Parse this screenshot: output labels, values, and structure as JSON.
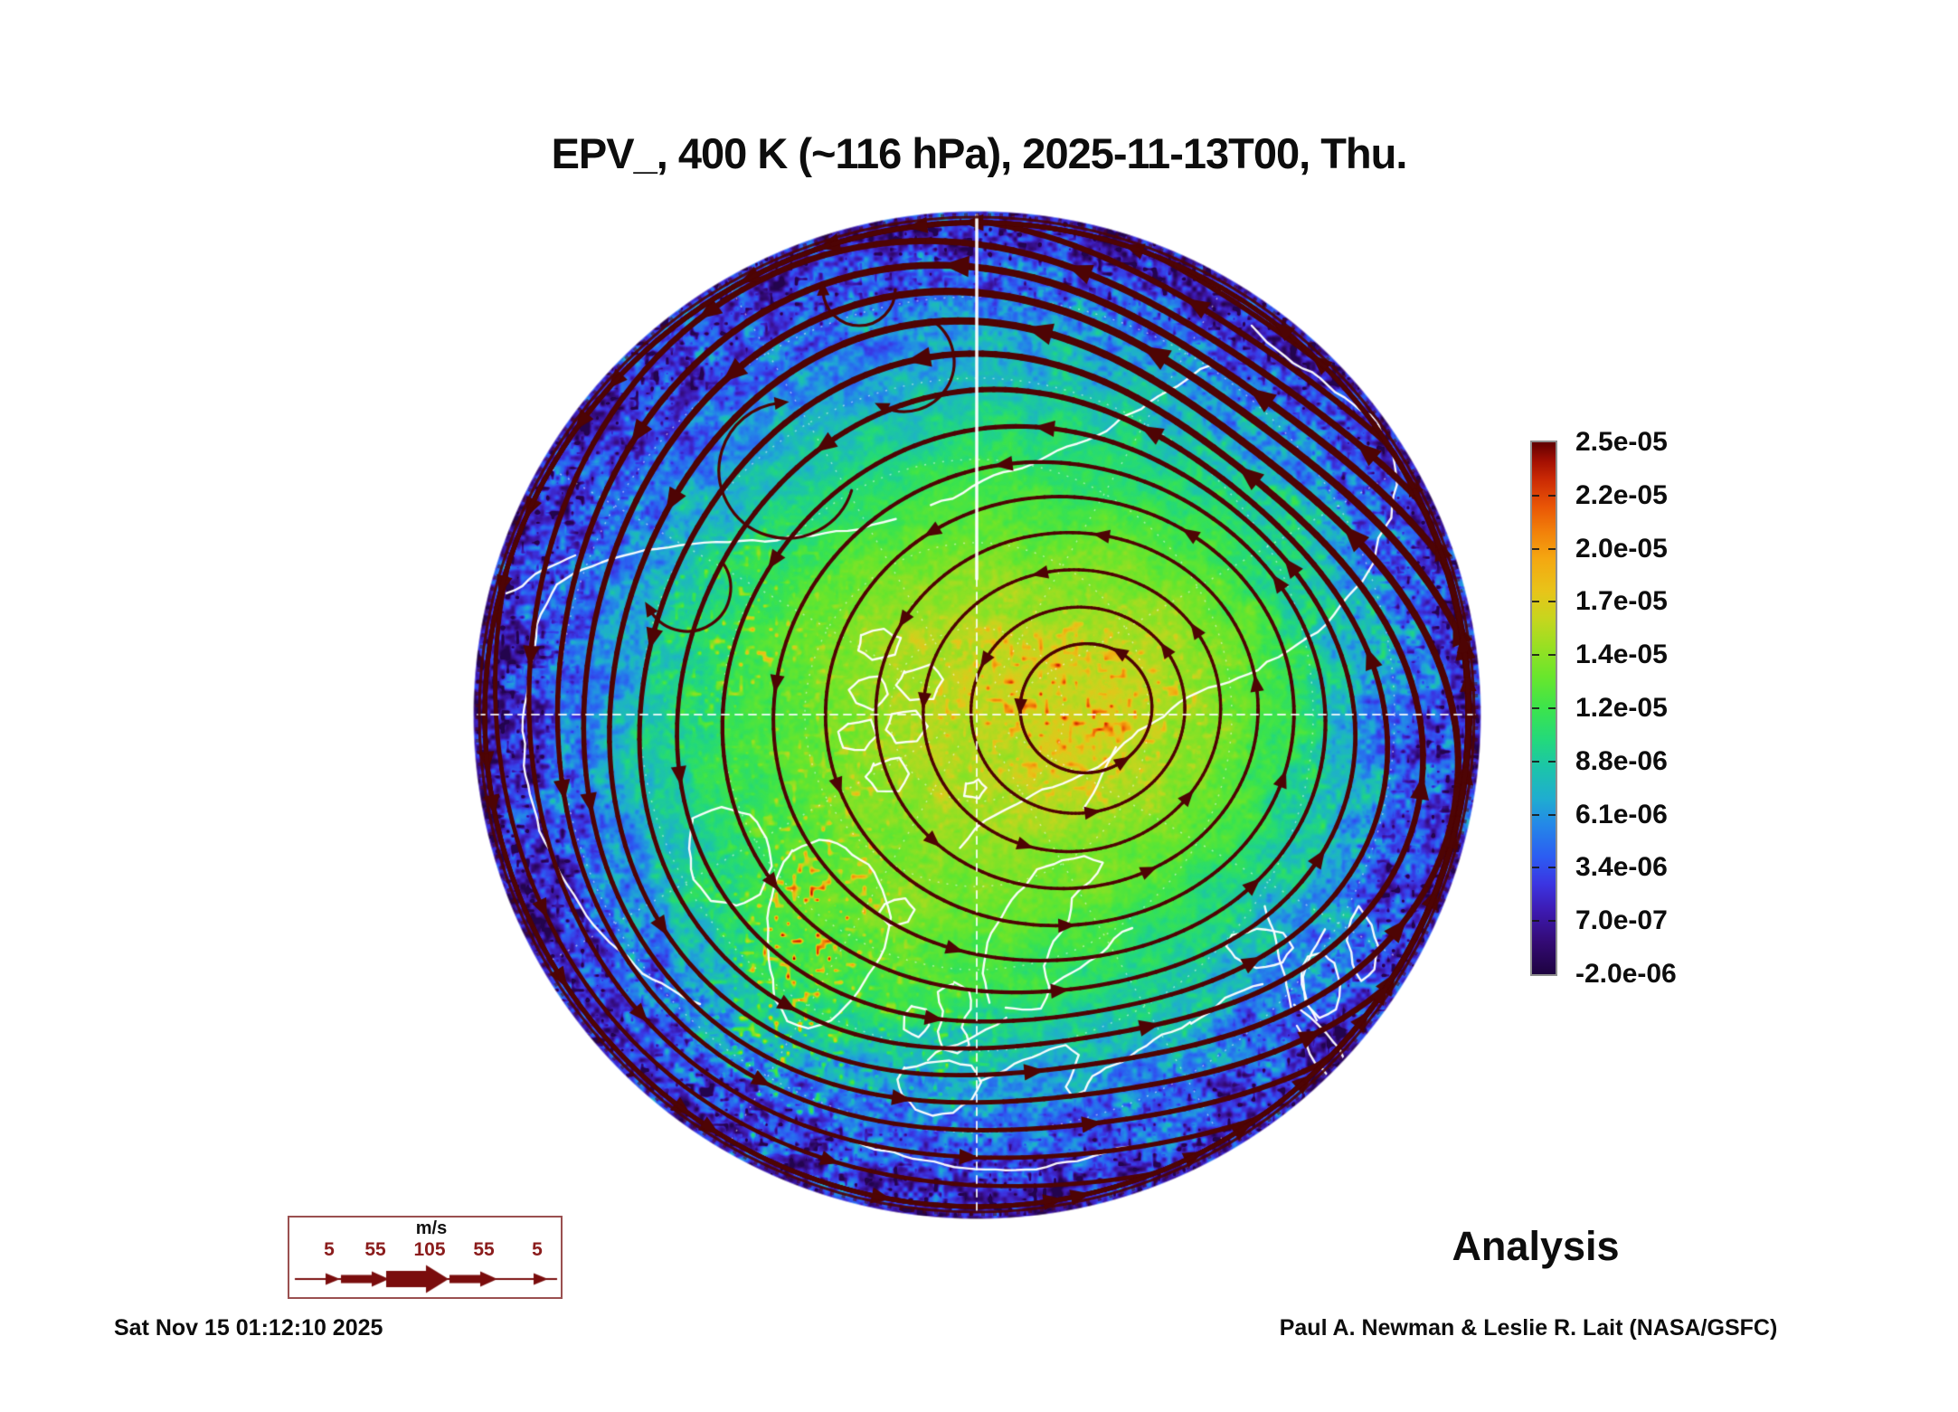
{
  "title": "EPV_, 400 K (~116 hPa), 2025-11-13T00, Thu.",
  "annotations": {
    "analysis_label": "Analysis",
    "generated_timestamp": "Sat Nov 15 01:12:10 2025",
    "credit": "Paul A. Newman & Leslie R. Lait (NASA/GSFC)"
  },
  "colorbar": {
    "tick_labels": [
      "2.5e-05",
      "2.2e-05",
      "2.0e-05",
      "1.7e-05",
      "1.4e-05",
      "1.2e-05",
      "8.8e-06",
      "6.1e-06",
      "3.4e-06",
      "7.0e-07",
      "-2.0e-06"
    ],
    "gradient": [
      {
        "t": 0.0,
        "color": "#1e0340"
      },
      {
        "t": 0.06,
        "color": "#330a74"
      },
      {
        "t": 0.12,
        "color": "#3d1ab2"
      },
      {
        "t": 0.17,
        "color": "#3b35e2"
      },
      {
        "t": 0.22,
        "color": "#2c5cf2"
      },
      {
        "t": 0.28,
        "color": "#2487e8"
      },
      {
        "t": 0.33,
        "color": "#1fadd0"
      },
      {
        "t": 0.39,
        "color": "#1cc5a8"
      },
      {
        "t": 0.44,
        "color": "#23d97c"
      },
      {
        "t": 0.5,
        "color": "#3ce44c"
      },
      {
        "t": 0.56,
        "color": "#69e62c"
      },
      {
        "t": 0.62,
        "color": "#9cdf22"
      },
      {
        "t": 0.67,
        "color": "#c8d51e"
      },
      {
        "t": 0.72,
        "color": "#e8c419"
      },
      {
        "t": 0.78,
        "color": "#f4a811"
      },
      {
        "t": 0.83,
        "color": "#f2820a"
      },
      {
        "t": 0.88,
        "color": "#e95506"
      },
      {
        "t": 0.93,
        "color": "#cb2a04"
      },
      {
        "t": 0.965,
        "color": "#a30f02"
      },
      {
        "t": 1.0,
        "color": "#600000"
      }
    ]
  },
  "wind_legend": {
    "unit": "m/s",
    "speed_labels": [
      "5",
      "55",
      "105",
      "55",
      "5"
    ]
  },
  "map_colors": {
    "streamline": "#4e0404",
    "coastline": "#ffffff",
    "graticule": "#ffffff",
    "legend_accent": "#7a0d0d"
  },
  "chart_data": {
    "type": "heatmap",
    "title": "EPV_, 400 K (~116 hPa), 2025-11-13T00, Thu.",
    "field": "EPV_ (Ertel potential vorticity)",
    "theta_level": "400 K",
    "pressure_level": "~116 hPa",
    "valid_time": "2025-11-13T00, Thu.",
    "projection": "Northern Hemisphere polar stereographic (pole at center, map disc bounded by low latitudes)",
    "colorbar_orientation": "vertical, right side, max at top",
    "colorbar_tick_values": [
      2.5e-05,
      2.2e-05,
      2e-05,
      1.7e-05,
      1.4e-05,
      1.2e-05,
      8.8e-06,
      6.1e-06,
      3.4e-06,
      7e-07,
      -2e-06
    ],
    "colorbar_range": [
      -2e-06,
      2.5e-05
    ],
    "field_structure": "high EPV (yellow/orange, ~1.2e-05 to 1.8e-05) over the pole and Siberian side, green mid-latitudes (~9e-06), cyan/blue (~1e-06 to 6e-06) with noisy speckle toward the disc rim, violet at the outer edge; orange gravity-wave speckle near Greenland and right of the pole",
    "overlays": [
      "EPV color-shaded field",
      "dark-maroon wind streamlines with arrowheads circulating counterclockwise around the polar vortex (thickest jet band on upper-right rim)",
      "white coastlines (0E meridian toward bottom: Europe bottom, Siberia right, North America left)",
      "white dashed/dotted latitude-longitude graticule with solid meridian segment at top"
    ],
    "wind_speed_legend_ms": [
      5,
      55,
      105,
      55,
      5
    ],
    "data_source_label": "Analysis"
  }
}
